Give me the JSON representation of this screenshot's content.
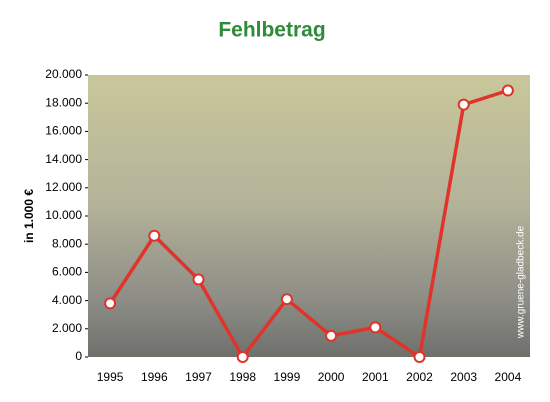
{
  "chart_data": {
    "type": "line",
    "title": "Fehlbetrag",
    "y_label": "in 1.000 €",
    "annotation": "www.gruene-gladbeck.de",
    "categories": [
      "1995",
      "1996",
      "1997",
      "1998",
      "1999",
      "2000",
      "2001",
      "2002",
      "2003",
      "2004"
    ],
    "series": [
      {
        "name": "Fehlbetrag",
        "color": "#e0332a",
        "values": [
          3800,
          8600,
          5500,
          0,
          4100,
          1500,
          2100,
          0,
          17900,
          18900
        ]
      }
    ],
    "ylim": [
      0,
      20000
    ],
    "yticks": [
      0,
      {
        "value": 2000,
        "label": "2.000"
      },
      {
        "value": 4000,
        "label": "4.000"
      },
      {
        "value": 6000,
        "label": "6.000"
      },
      {
        "value": 8000,
        "label": "8.000"
      },
      {
        "value": 10000,
        "label": "10.000"
      },
      {
        "value": 12000,
        "label": "12.000"
      },
      {
        "value": 14000,
        "label": "14.000"
      },
      {
        "value": 16000,
        "label": "16.000"
      },
      {
        "value": 18000,
        "label": "18.000"
      },
      {
        "value": 20000,
        "label": "20.000"
      }
    ]
  }
}
